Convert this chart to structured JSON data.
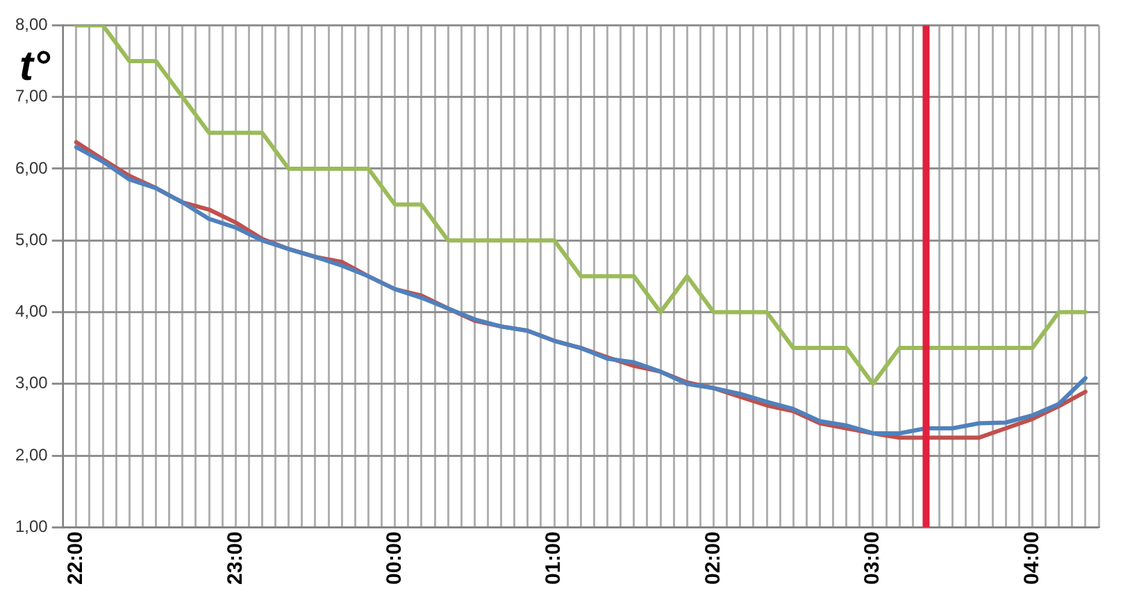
{
  "chart_data": {
    "type": "line",
    "ylabel": "t°",
    "x": [
      "2000-01-01T22:00",
      "2000-01-01T22:10",
      "2000-01-01T22:20",
      "2000-01-01T22:30",
      "2000-01-01T22:40",
      "2000-01-01T22:50",
      "2000-01-01T23:00",
      "2000-01-01T23:10",
      "2000-01-01T23:20",
      "2000-01-01T23:30",
      "2000-01-01T23:40",
      "2000-01-01T23:50",
      "2000-01-02T00:00",
      "2000-01-02T00:10",
      "2000-01-02T00:20",
      "2000-01-02T00:30",
      "2000-01-02T00:40",
      "2000-01-02T00:50",
      "2000-01-02T01:00",
      "2000-01-02T01:10",
      "2000-01-02T01:20",
      "2000-01-02T01:30",
      "2000-01-02T01:40",
      "2000-01-02T01:50",
      "2000-01-02T02:00",
      "2000-01-02T02:10",
      "2000-01-02T02:20",
      "2000-01-02T02:30",
      "2000-01-02T02:40",
      "2000-01-02T02:50",
      "2000-01-02T03:00",
      "2000-01-02T03:10",
      "2000-01-02T03:20",
      "2000-01-02T03:30",
      "2000-01-02T03:40",
      "2000-01-02T03:50",
      "2000-01-02T04:00",
      "2000-01-02T04:10",
      "2000-01-02T04:20"
    ],
    "series": [
      {
        "color": "#9bbb59",
        "values": [
          8,
          8,
          7.5,
          7.5,
          7,
          6.5,
          6.5,
          6.5,
          6,
          6,
          6,
          6,
          5.5,
          5.5,
          5,
          5,
          5,
          5,
          5,
          4.5,
          4.5,
          4.5,
          4,
          4.5,
          4,
          4,
          4,
          3.5,
          3.5,
          3.5,
          3,
          3.5,
          3.5,
          3.5,
          3.5,
          3.5,
          3.5,
          4,
          4
        ]
      },
      {
        "color": "#4f81bd",
        "values": [
          6.3,
          6.1,
          5.85,
          5.73,
          5.53,
          5.3,
          5.18,
          5,
          4.88,
          4.77,
          4.65,
          4.5,
          4.32,
          4.2,
          4.05,
          3.9,
          3.8,
          3.74,
          3.6,
          3.5,
          3.35,
          3.3,
          3.17,
          3,
          2.94,
          2.86,
          2.75,
          2.65,
          2.48,
          2.42,
          2.31,
          2.31,
          2.38,
          2.38,
          2.45,
          2.46,
          2.56,
          2.72,
          3.08
        ]
      },
      {
        "color": "#c0504d",
        "values": [
          6.37,
          6.13,
          5.9,
          5.73,
          5.53,
          5.43,
          5.25,
          5.02,
          4.88,
          4.77,
          4.7,
          4.5,
          4.32,
          4.23,
          4.05,
          3.88,
          3.8,
          3.74,
          3.6,
          3.5,
          3.37,
          3.25,
          3.17,
          3.02,
          2.94,
          2.82,
          2.7,
          2.62,
          2.45,
          2.38,
          2.31,
          2.25,
          2.25,
          2.25,
          2.25,
          2.38,
          2.51,
          2.69,
          2.89
        ]
      }
    ],
    "xlim": [
      "2000-01-01T21:55",
      "2000-01-02T04:25"
    ],
    "xticks": [
      {
        "value": "2000-01-01T21:55",
        "label": null
      },
      {
        "value": "2000-01-01T22:00",
        "label": "22:00"
      },
      {
        "value": "2000-01-01T22:05",
        "label": null
      },
      {
        "value": "2000-01-01T22:10",
        "label": null
      },
      {
        "value": "2000-01-01T22:15",
        "label": null
      },
      {
        "value": "2000-01-01T22:20",
        "label": null
      },
      {
        "value": "2000-01-01T22:25",
        "label": null
      },
      {
        "value": "2000-01-01T22:30",
        "label": null
      },
      {
        "value": "2000-01-01T22:35",
        "label": null
      },
      {
        "value": "2000-01-01T22:40",
        "label": null
      },
      {
        "value": "2000-01-01T22:45",
        "label": null
      },
      {
        "value": "2000-01-01T22:50",
        "label": null
      },
      {
        "value": "2000-01-01T22:55",
        "label": null
      },
      {
        "value": "2000-01-01T23:00",
        "label": "23:00"
      },
      {
        "value": "2000-01-01T23:05",
        "label": null
      },
      {
        "value": "2000-01-01T23:10",
        "label": null
      },
      {
        "value": "2000-01-01T23:15",
        "label": null
      },
      {
        "value": "2000-01-01T23:20",
        "label": null
      },
      {
        "value": "2000-01-01T23:25",
        "label": null
      },
      {
        "value": "2000-01-01T23:30",
        "label": null
      },
      {
        "value": "2000-01-01T23:35",
        "label": null
      },
      {
        "value": "2000-01-01T23:40",
        "label": null
      },
      {
        "value": "2000-01-01T23:45",
        "label": null
      },
      {
        "value": "2000-01-01T23:50",
        "label": null
      },
      {
        "value": "2000-01-01T23:55",
        "label": null
      },
      {
        "value": "2000-01-02T00:00",
        "label": "00:00"
      },
      {
        "value": "2000-01-02T00:05",
        "label": null
      },
      {
        "value": "2000-01-02T00:10",
        "label": null
      },
      {
        "value": "2000-01-02T00:15",
        "label": null
      },
      {
        "value": "2000-01-02T00:20",
        "label": null
      },
      {
        "value": "2000-01-02T00:25",
        "label": null
      },
      {
        "value": "2000-01-02T00:30",
        "label": null
      },
      {
        "value": "2000-01-02T00:35",
        "label": null
      },
      {
        "value": "2000-01-02T00:40",
        "label": null
      },
      {
        "value": "2000-01-02T00:45",
        "label": null
      },
      {
        "value": "2000-01-02T00:50",
        "label": null
      },
      {
        "value": "2000-01-02T00:55",
        "label": null
      },
      {
        "value": "2000-01-02T01:00",
        "label": "01:00"
      },
      {
        "value": "2000-01-02T01:05",
        "label": null
      },
      {
        "value": "2000-01-02T01:10",
        "label": null
      },
      {
        "value": "2000-01-02T01:15",
        "label": null
      },
      {
        "value": "2000-01-02T01:20",
        "label": null
      },
      {
        "value": "2000-01-02T01:25",
        "label": null
      },
      {
        "value": "2000-01-02T01:30",
        "label": null
      },
      {
        "value": "2000-01-02T01:35",
        "label": null
      },
      {
        "value": "2000-01-02T01:40",
        "label": null
      },
      {
        "value": "2000-01-02T01:45",
        "label": null
      },
      {
        "value": "2000-01-02T01:50",
        "label": null
      },
      {
        "value": "2000-01-02T01:55",
        "label": null
      },
      {
        "value": "2000-01-02T02:00",
        "label": "02:00"
      },
      {
        "value": "2000-01-02T02:05",
        "label": null
      },
      {
        "value": "2000-01-02T02:10",
        "label": null
      },
      {
        "value": "2000-01-02T02:15",
        "label": null
      },
      {
        "value": "2000-01-02T02:20",
        "label": null
      },
      {
        "value": "2000-01-02T02:25",
        "label": null
      },
      {
        "value": "2000-01-02T02:30",
        "label": null
      },
      {
        "value": "2000-01-02T02:35",
        "label": null
      },
      {
        "value": "2000-01-02T02:40",
        "label": null
      },
      {
        "value": "2000-01-02T02:45",
        "label": null
      },
      {
        "value": "2000-01-02T02:50",
        "label": null
      },
      {
        "value": "2000-01-02T02:55",
        "label": null
      },
      {
        "value": "2000-01-02T03:00",
        "label": "03:00"
      },
      {
        "value": "2000-01-02T03:05",
        "label": null
      },
      {
        "value": "2000-01-02T03:10",
        "label": null
      },
      {
        "value": "2000-01-02T03:15",
        "label": null
      },
      {
        "value": "2000-01-02T03:20",
        "label": null
      },
      {
        "value": "2000-01-02T03:25",
        "label": null
      },
      {
        "value": "2000-01-02T03:30",
        "label": null
      },
      {
        "value": "2000-01-02T03:35",
        "label": null
      },
      {
        "value": "2000-01-02T03:40",
        "label": null
      },
      {
        "value": "2000-01-02T03:45",
        "label": null
      },
      {
        "value": "2000-01-02T03:50",
        "label": null
      },
      {
        "value": "2000-01-02T03:55",
        "label": null
      },
      {
        "value": "2000-01-02T04:00",
        "label": "04:00"
      },
      {
        "value": "2000-01-02T04:05",
        "label": null
      },
      {
        "value": "2000-01-02T04:10",
        "label": null
      },
      {
        "value": "2000-01-02T04:15",
        "label": null
      },
      {
        "value": "2000-01-02T04:20",
        "label": null
      },
      {
        "value": "2000-01-02T04:25",
        "label": null
      }
    ],
    "ylim": [
      1,
      8
    ],
    "yticks": [
      {
        "value": 1,
        "label": "1,00"
      },
      {
        "value": 2,
        "label": "2,00"
      },
      {
        "value": 3,
        "label": "3,00"
      },
      {
        "value": 4,
        "label": "4,00"
      },
      {
        "value": 5,
        "label": "5,00"
      },
      {
        "value": 6,
        "label": "6,00"
      },
      {
        "value": 7,
        "label": "7,00"
      },
      {
        "value": 8,
        "label": "8,00"
      }
    ],
    "ref_lines": [
      {
        "axis": "x",
        "value": "2000-01-02T03:20",
        "color": "#e0203c"
      }
    ],
    "grid": true,
    "legend": false,
    "marker": "none",
    "line_style": "solid"
  }
}
